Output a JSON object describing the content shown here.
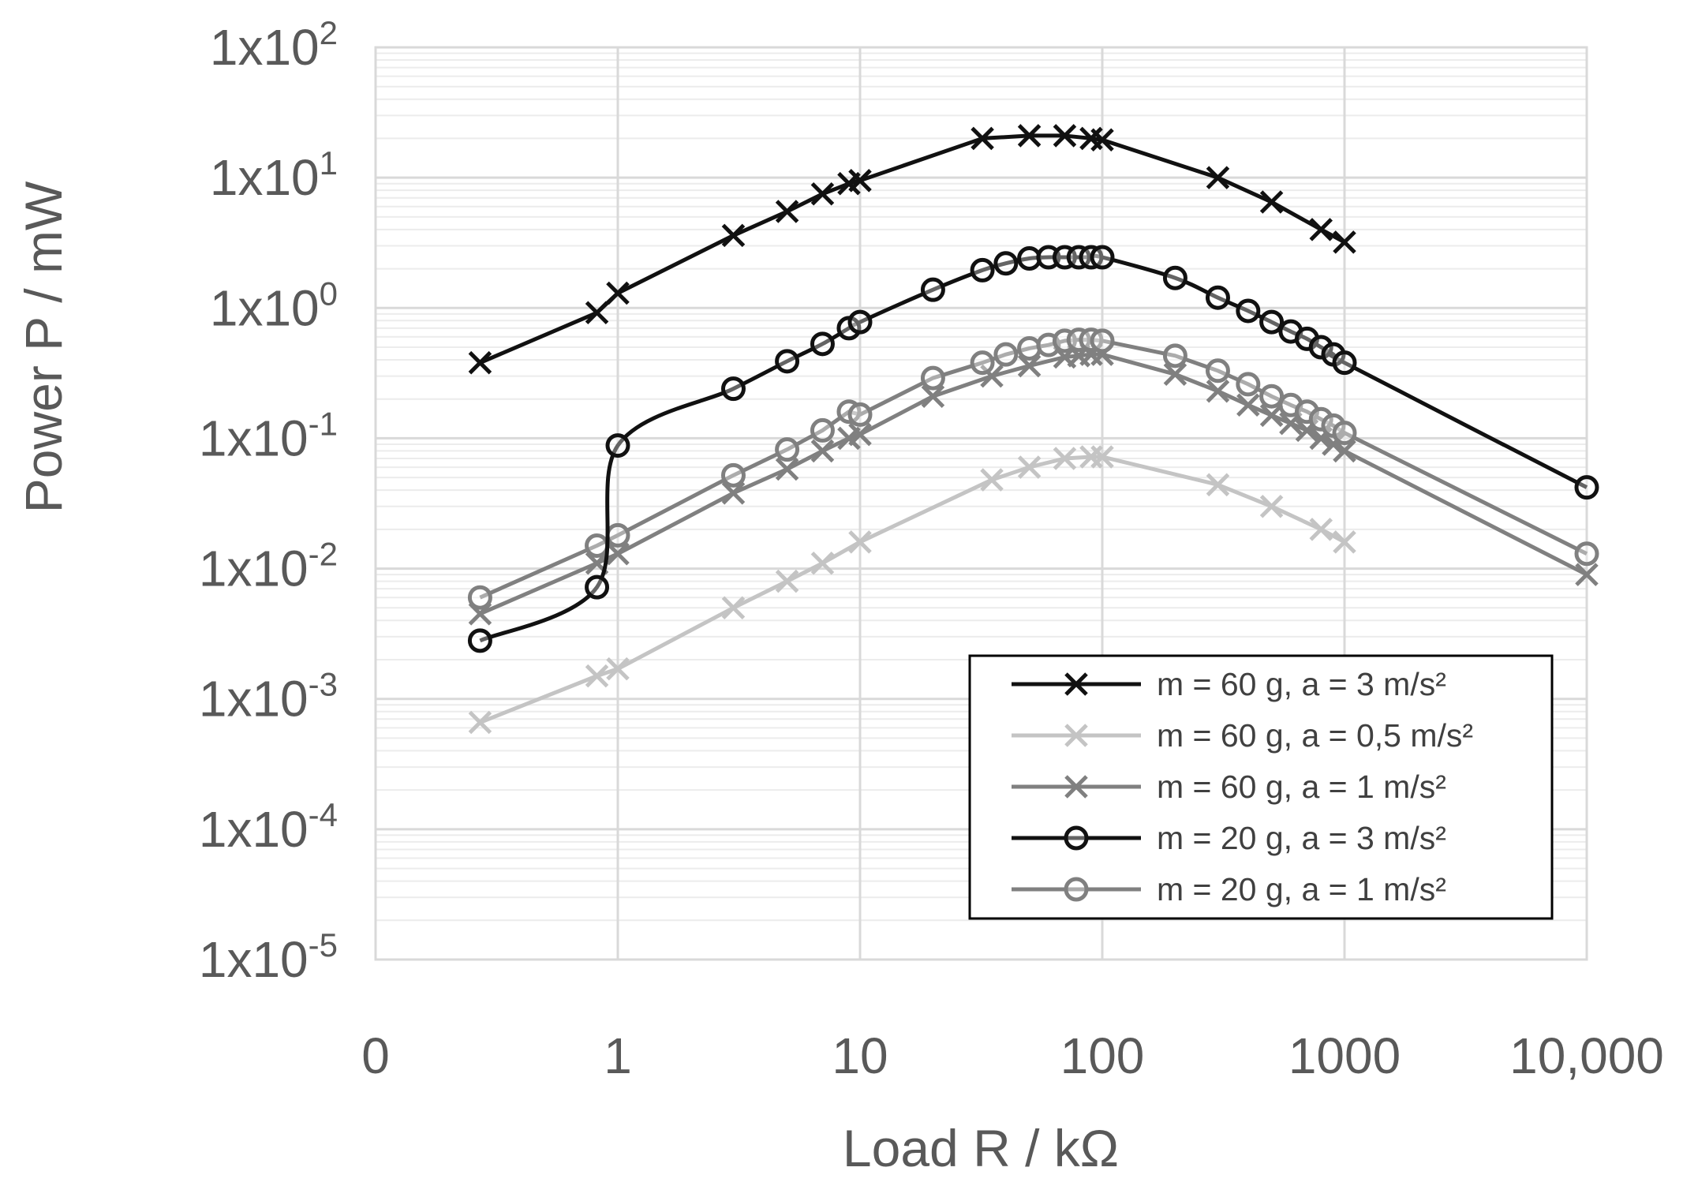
{
  "chart_data": {
    "type": "line",
    "title": "",
    "xlabel": "Load R / kΩ",
    "ylabel": "Power P / mW",
    "xscale": "log",
    "yscale": "log",
    "xlim": [
      0.1,
      10000
    ],
    "ylim": [
      1e-05,
      100
    ],
    "grid": true,
    "legend_position": "bottom-right",
    "x_tick_labels": [
      {
        "value": 0.1,
        "label": "0"
      },
      {
        "value": 1,
        "label": "1"
      },
      {
        "value": 10,
        "label": "10"
      },
      {
        "value": 100,
        "label": "100"
      },
      {
        "value": 1000,
        "label": "1000"
      },
      {
        "value": 10000,
        "label": "10,000"
      }
    ],
    "y_tick_labels": [
      {
        "value": 100,
        "base": "1x10",
        "exp": "2"
      },
      {
        "value": 10,
        "base": "1x10",
        "exp": "1"
      },
      {
        "value": 1,
        "base": "1x10",
        "exp": "0"
      },
      {
        "value": 0.1,
        "base": "1x10",
        "exp": "-1"
      },
      {
        "value": 0.01,
        "base": "1x10",
        "exp": "-2"
      },
      {
        "value": 0.001,
        "base": "1x10",
        "exp": "-3"
      },
      {
        "value": 0.0001,
        "base": "1x10",
        "exp": "-4"
      },
      {
        "value": 1e-05,
        "base": "1x10",
        "exp": "-5"
      }
    ],
    "series": [
      {
        "name": "m = 60 g, a = 3 m/s²",
        "marker": "x",
        "color": "#111111",
        "smooth": false,
        "points": [
          [
            0.27,
            0.38
          ],
          [
            0.82,
            0.92
          ],
          [
            1,
            1.3
          ],
          [
            3,
            3.6
          ],
          [
            5,
            5.5
          ],
          [
            7,
            7.5
          ],
          [
            9,
            9
          ],
          [
            10,
            9.5
          ],
          [
            32,
            20
          ],
          [
            50,
            21
          ],
          [
            70,
            21
          ],
          [
            90,
            20
          ],
          [
            100,
            19.5
          ],
          [
            300,
            10
          ],
          [
            500,
            6.5
          ],
          [
            800,
            4
          ],
          [
            1000,
            3.2
          ]
        ]
      },
      {
        "name": "m = 60 g, a = 0,5 m/s²",
        "marker": "x",
        "color": "#c4c4c4",
        "smooth": false,
        "points": [
          [
            0.27,
            0.00066
          ],
          [
            0.82,
            0.0015
          ],
          [
            1,
            0.0017
          ],
          [
            3,
            0.005
          ],
          [
            5,
            0.008
          ],
          [
            7,
            0.011
          ],
          [
            10,
            0.016
          ],
          [
            35,
            0.048
          ],
          [
            50,
            0.06
          ],
          [
            70,
            0.07
          ],
          [
            90,
            0.072
          ],
          [
            100,
            0.072
          ],
          [
            300,
            0.044
          ],
          [
            500,
            0.03
          ],
          [
            800,
            0.02
          ],
          [
            1000,
            0.016
          ]
        ]
      },
      {
        "name": "m = 60 g, a = 1 m/s²",
        "marker": "x",
        "color": "#808080",
        "smooth": false,
        "points": [
          [
            0.27,
            0.0045
          ],
          [
            0.82,
            0.011
          ],
          [
            1,
            0.013
          ],
          [
            3,
            0.038
          ],
          [
            5,
            0.058
          ],
          [
            7,
            0.08
          ],
          [
            9,
            0.1
          ],
          [
            10,
            0.107
          ],
          [
            20,
            0.21
          ],
          [
            35,
            0.3
          ],
          [
            50,
            0.36
          ],
          [
            70,
            0.42
          ],
          [
            80,
            0.43
          ],
          [
            90,
            0.44
          ],
          [
            100,
            0.44
          ],
          [
            200,
            0.31
          ],
          [
            300,
            0.23
          ],
          [
            400,
            0.18
          ],
          [
            500,
            0.15
          ],
          [
            600,
            0.13
          ],
          [
            700,
            0.115
          ],
          [
            800,
            0.1
          ],
          [
            900,
            0.09
          ],
          [
            1000,
            0.08
          ],
          [
            10000,
            0.009
          ]
        ]
      },
      {
        "name": "m = 20 g, a = 3 m/s²",
        "marker": "o",
        "color": "#111111",
        "smooth": true,
        "points": [
          [
            0.27,
            0.0028
          ],
          [
            0.82,
            0.0072
          ],
          [
            1,
            0.088
          ],
          [
            3,
            0.24
          ],
          [
            5,
            0.39
          ],
          [
            7,
            0.53
          ],
          [
            9,
            0.7
          ],
          [
            10,
            0.78
          ],
          [
            20,
            1.38
          ],
          [
            32,
            1.95
          ],
          [
            40,
            2.2
          ],
          [
            50,
            2.4
          ],
          [
            60,
            2.45
          ],
          [
            70,
            2.45
          ],
          [
            80,
            2.45
          ],
          [
            90,
            2.45
          ],
          [
            100,
            2.45
          ],
          [
            200,
            1.7
          ],
          [
            300,
            1.2
          ],
          [
            400,
            0.95
          ],
          [
            500,
            0.78
          ],
          [
            600,
            0.66
          ],
          [
            700,
            0.58
          ],
          [
            800,
            0.5
          ],
          [
            900,
            0.44
          ],
          [
            1000,
            0.38
          ],
          [
            10000,
            0.042
          ]
        ]
      },
      {
        "name": "m = 20 g, a = 1 m/s²",
        "marker": "o",
        "color": "#808080",
        "smooth": false,
        "points": [
          [
            0.27,
            0.006
          ],
          [
            0.82,
            0.015
          ],
          [
            1,
            0.018
          ],
          [
            3,
            0.052
          ],
          [
            5,
            0.082
          ],
          [
            7,
            0.115
          ],
          [
            9,
            0.16
          ],
          [
            10,
            0.152
          ],
          [
            20,
            0.29
          ],
          [
            32,
            0.38
          ],
          [
            40,
            0.44
          ],
          [
            50,
            0.49
          ],
          [
            60,
            0.52
          ],
          [
            70,
            0.56
          ],
          [
            80,
            0.57
          ],
          [
            90,
            0.57
          ],
          [
            100,
            0.56
          ],
          [
            200,
            0.43
          ],
          [
            300,
            0.33
          ],
          [
            400,
            0.26
          ],
          [
            500,
            0.21
          ],
          [
            600,
            0.18
          ],
          [
            700,
            0.16
          ],
          [
            800,
            0.14
          ],
          [
            900,
            0.125
          ],
          [
            1000,
            0.11
          ],
          [
            10000,
            0.013
          ]
        ]
      }
    ]
  }
}
